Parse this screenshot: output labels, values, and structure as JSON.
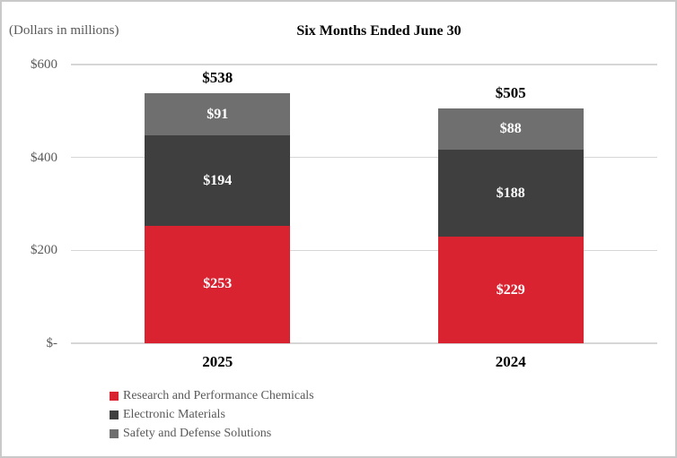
{
  "chart_data": {
    "type": "bar",
    "stacked": true,
    "title": "Six Months Ended June 30",
    "units_note": "(Dollars in millions)",
    "categories": [
      "2025",
      "2024"
    ],
    "series": [
      {
        "name": "Research and Performance Chemicals",
        "color": "#DA2331",
        "values": [
          253,
          229
        ]
      },
      {
        "name": "Electronic Materials",
        "color": "#3F3F3F",
        "values": [
          194,
          188
        ]
      },
      {
        "name": "Safety and Defense Solutions",
        "color": "#6F6F6F",
        "values": [
          91,
          88
        ]
      }
    ],
    "segment_labels": [
      [
        "$253",
        "$229"
      ],
      [
        "$194",
        "$188"
      ],
      [
        "$91",
        "$88"
      ]
    ],
    "totals": [
      538,
      505
    ],
    "total_labels": [
      "$538",
      "$505"
    ],
    "y_axis": {
      "ylim": [
        0,
        600
      ],
      "ticks": [
        {
          "value": 600,
          "label": "$600"
        },
        {
          "value": 400,
          "label": "$400"
        },
        {
          "value": 200,
          "label": "$200"
        },
        {
          "value": 0,
          "label": "$-"
        }
      ]
    },
    "grid": true,
    "legend_position": "bottom-left"
  },
  "colors": {
    "grid": "#D6D6D6",
    "axis_text": "#595959",
    "legend_text": "#595959",
    "bar_label": "#FFFFFF",
    "border": "#C9C9C9"
  }
}
